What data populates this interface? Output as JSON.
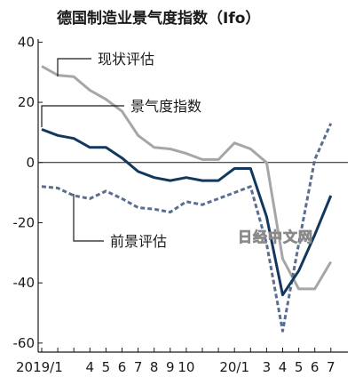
{
  "chart_data": {
    "type": "line",
    "title": "德国制造业景气度指数（Ifo）",
    "xlabel": "",
    "ylabel": "",
    "x": [
      "2019-01",
      "2019-02",
      "2019-03",
      "2019-04",
      "2019-05",
      "2019-06",
      "2019-07",
      "2019-08",
      "2019-09",
      "2019-10",
      "2019-11",
      "2019-12",
      "2020-01",
      "2020-02",
      "2020-03",
      "2020-04",
      "2020-05",
      "2020-06",
      "2020-07"
    ],
    "x_tick_labels": [
      "2019/1",
      "",
      "",
      "4",
      "5",
      "6",
      "7",
      "8",
      "9",
      "10",
      "",
      "",
      "20/1",
      "",
      "3",
      "4",
      "5",
      "6",
      "7"
    ],
    "ylim": [
      -63,
      41
    ],
    "y_ticks": [
      40,
      20,
      0,
      -20,
      -40,
      -60
    ],
    "grid": false,
    "legend": "inline-labels",
    "series": [
      {
        "name": "现状评估",
        "style": "solid-gray",
        "color": "#a6a6a6",
        "values": [
          32,
          29,
          28.5,
          24,
          21,
          17,
          9,
          5,
          4.5,
          3,
          1,
          1,
          6.5,
          4.5,
          0,
          -32,
          -42,
          -42,
          -33
        ]
      },
      {
        "name": "景气度指数",
        "style": "solid-navy",
        "color": "#13385e",
        "values": [
          11,
          9,
          8,
          5,
          5,
          1.5,
          -3,
          -5,
          -6,
          -5,
          -6,
          -6,
          -2,
          -2,
          -18,
          -44,
          -36,
          -24,
          -11
        ]
      },
      {
        "name": "前景评估",
        "style": "dashed",
        "color": "#5a6f90",
        "values": [
          -8,
          -8.5,
          -11,
          -12,
          -9.5,
          -12,
          -15,
          -15.5,
          -16.5,
          -13,
          -14,
          -12,
          -10,
          -8,
          -27,
          -56,
          -27,
          1,
          13
        ]
      }
    ]
  },
  "watermark": "日经中文网"
}
